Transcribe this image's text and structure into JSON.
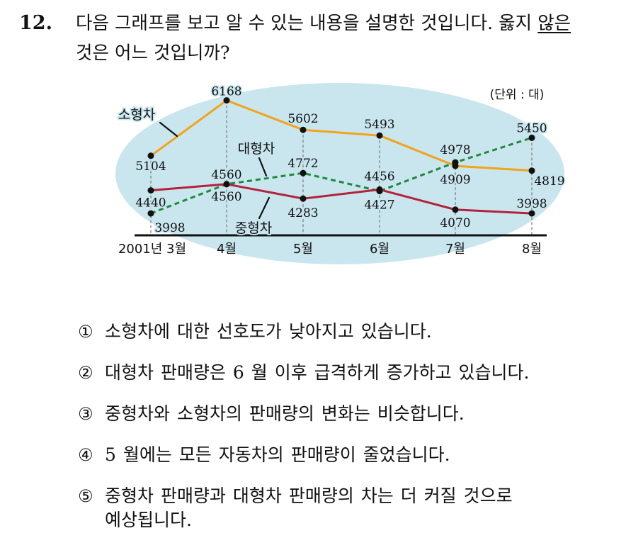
{
  "question": {
    "number": "12.",
    "text_before": "다음 그래프를 보고 알 수 있는 내용을 설명한 것입니다. 옳지",
    "underlined": "않은",
    "text_after": "것은 어느 것입니까?"
  },
  "chart_data": {
    "type": "line",
    "categories": [
      "2001년 3월",
      "4월",
      "5월",
      "6월",
      "7월",
      "8월"
    ],
    "unit_label": "(단위 : 대)",
    "series": [
      {
        "name": "소형차",
        "values": [
          5104,
          6168,
          5602,
          5493,
          4909,
          4819
        ],
        "color": "#f2a31b"
      },
      {
        "name": "대형차",
        "values": [
          3998,
          4560,
          4772,
          4427,
          4978,
          5450
        ],
        "color": "#1f8a3c"
      },
      {
        "name": "중형차",
        "values": [
          4440,
          4560,
          4283,
          4456,
          4070,
          3998
        ],
        "color": "#b3223c"
      }
    ],
    "grid": false,
    "background_color": "#c9e6ef"
  },
  "options": [
    {
      "marker": "①",
      "text": "소형차에 대한 선호도가 낮아지고 있습니다."
    },
    {
      "marker": "②",
      "text": "대형차 판매량은 6 월 이후 급격하게 증가하고 있습니다."
    },
    {
      "marker": "③",
      "text": "중형차와 소형차의 판매량의 변화는 비슷합니다."
    },
    {
      "marker": "④",
      "text": "5 월에는 모든 자동차의 판매량이 줄었습니다."
    },
    {
      "marker": "⑤",
      "text": "중형차 판매량과 대형차 판매량의 차는 더 커질 것으로",
      "text_cont": "예상됩니다."
    }
  ]
}
